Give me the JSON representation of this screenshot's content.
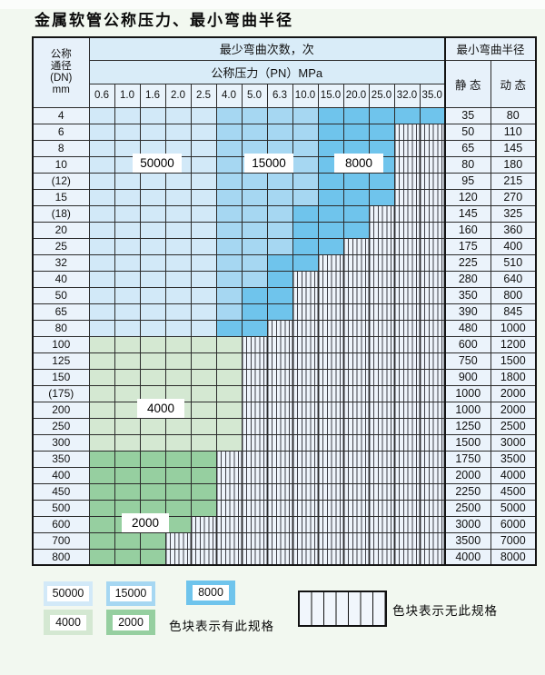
{
  "title": "金属软管公称压力、最小弯曲半径",
  "table": {
    "corner_header": [
      "公称",
      "通径",
      "(DN)",
      "mm"
    ],
    "bend_cycles_header": "最少弯曲次数，次",
    "pressure_header": "公称压力（PN）MPa",
    "radius_header": "最小弯曲半径",
    "static_header": "静 态",
    "dynamic_header": "动 态",
    "pressure_columns": [
      "0.6",
      "1.0",
      "1.6",
      "2.0",
      "2.5",
      "4.0",
      "5.0",
      "6.3",
      "10.0",
      "15.0",
      "20.0",
      "25.0",
      "32.0",
      "35.0"
    ],
    "cell_legend": {
      "A": "50000",
      "B": "15000",
      "C": "8000",
      "D": "4000",
      "E": "2000",
      "X": "no-spec"
    },
    "rows": [
      {
        "dn": "4",
        "cells": "AAAAABBBBCCCCC",
        "static": "35",
        "dynamic": "80"
      },
      {
        "dn": "6",
        "cells": "AAAAABBBBCCCXX",
        "static": "50",
        "dynamic": "110"
      },
      {
        "dn": "8",
        "cells": "AAAAABBBBCCCXX",
        "static": "65",
        "dynamic": "145"
      },
      {
        "dn": "10",
        "cells": "AAAAABBBBCCCXX",
        "static": "80",
        "dynamic": "180"
      },
      {
        "dn": "(12)",
        "cells": "AAAAABBBBCCCXX",
        "static": "95",
        "dynamic": "215"
      },
      {
        "dn": "15",
        "cells": "AAAAABBBBCCCXX",
        "static": "120",
        "dynamic": "270"
      },
      {
        "dn": "(18)",
        "cells": "AAAAABBBCCCXXX",
        "static": "145",
        "dynamic": "325"
      },
      {
        "dn": "20",
        "cells": "AAAAABBBCCCXXX",
        "static": "160",
        "dynamic": "360"
      },
      {
        "dn": "25",
        "cells": "AAAAABBBCCXXXX",
        "static": "175",
        "dynamic": "400"
      },
      {
        "dn": "32",
        "cells": "AAAAABBCCXXXXX",
        "static": "225",
        "dynamic": "510"
      },
      {
        "dn": "40",
        "cells": "AAAAABBCXXXXXX",
        "static": "280",
        "dynamic": "640"
      },
      {
        "dn": "50",
        "cells": "AAAAABCCXXXXXX",
        "static": "350",
        "dynamic": "800"
      },
      {
        "dn": "65",
        "cells": "AAAAABCCXXXXXX",
        "static": "390",
        "dynamic": "845"
      },
      {
        "dn": "80",
        "cells": "AAAAACCXXXXXXX",
        "static": "480",
        "dynamic": "1000"
      },
      {
        "dn": "100",
        "cells": "DDDDDDXXXXXXXX",
        "static": "600",
        "dynamic": "1200"
      },
      {
        "dn": "125",
        "cells": "DDDDDDXXXXXXXX",
        "static": "750",
        "dynamic": "1500"
      },
      {
        "dn": "150",
        "cells": "DDDDDDXXXXXXXX",
        "static": "900",
        "dynamic": "1800"
      },
      {
        "dn": "(175)",
        "cells": "DDDDDDXXXXXXXX",
        "static": "1000",
        "dynamic": "2000"
      },
      {
        "dn": "200",
        "cells": "DDDDDDXXXXXXXX",
        "static": "1000",
        "dynamic": "2000"
      },
      {
        "dn": "250",
        "cells": "DDDDDDXXXXXXXX",
        "static": "1250",
        "dynamic": "2500"
      },
      {
        "dn": "300",
        "cells": "DDDDDDXXXXXXXX",
        "static": "1500",
        "dynamic": "3000"
      },
      {
        "dn": "350",
        "cells": "EEEEEXXXXXXXXX",
        "static": "1750",
        "dynamic": "3500"
      },
      {
        "dn": "400",
        "cells": "EEEEEXXXXXXXXX",
        "static": "2000",
        "dynamic": "4000"
      },
      {
        "dn": "450",
        "cells": "EEEEEXXXXXXXXX",
        "static": "2250",
        "dynamic": "4500"
      },
      {
        "dn": "500",
        "cells": "EEEEEXXXXXXXXX",
        "static": "2500",
        "dynamic": "5000"
      },
      {
        "dn": "600",
        "cells": "EEEEXXXXXXXXXX",
        "static": "3000",
        "dynamic": "6000"
      },
      {
        "dn": "700",
        "cells": "EEEXXXXXXXXXXX",
        "static": "3500",
        "dynamic": "7000"
      },
      {
        "dn": "800",
        "cells": "EEEXXXXXXXXXXX",
        "static": "4000",
        "dynamic": "8000"
      }
    ]
  },
  "table_labels": {
    "l50000": "50000",
    "l15000": "15000",
    "l8000": "8000",
    "l4000": "4000",
    "l2000": "2000"
  },
  "legend": {
    "items": [
      {
        "label": "50000",
        "color_key": "c50000"
      },
      {
        "label": "15000",
        "color_key": "c15000"
      },
      {
        "label": "8000",
        "color_key": "c8000"
      },
      {
        "label": "4000",
        "color_key": "c4000"
      },
      {
        "label": "2000",
        "color_key": "c2000"
      }
    ],
    "has_spec_note": "色块表示有此规格",
    "no_spec_note": "色块表示无此规格"
  },
  "colors": {
    "c50000": "#d2e9f8",
    "c15000": "#a6d7f2",
    "c8000": "#6fc4ec",
    "c4000": "#d4e8d2",
    "c2000": "#96cfa0",
    "hatch_bg": "#eef4fb",
    "header_bg": "#d9ecf8",
    "grid_line": "#2b2b2b"
  }
}
